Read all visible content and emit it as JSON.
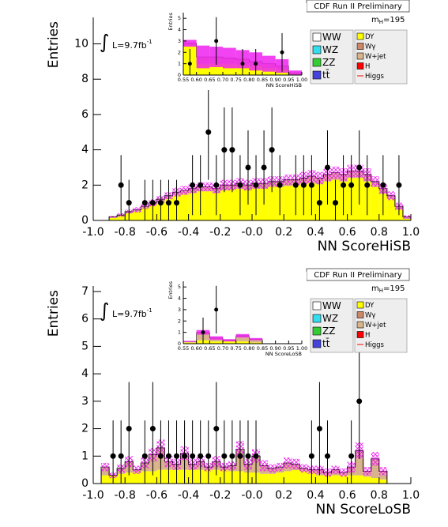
{
  "chart_data": [
    {
      "type": "stacked_histogram",
      "header": "CDF Run II Preliminary",
      "mass_label": {
        "text": "m",
        "subscript": "H",
        "suffix": "=195"
      },
      "integral_symbol": "∫",
      "lumi_label": {
        "text": "L=9.7fb",
        "superscript": "-1"
      },
      "ylabel": "Entries",
      "xlabel": "NN ScoreHiSB",
      "xlim": [
        -1.0,
        1.0
      ],
      "ylim": [
        0,
        11.5
      ],
      "xticks": [
        {
          "value": -1.0,
          "label": "-1.0"
        },
        -0.8,
        -0.6,
        -0.4,
        -0.2,
        {
          "value": 0,
          "label": "-0.0"
        },
        0.2,
        0.4,
        0.6,
        0.8,
        {
          "value": 1.0,
          "label": "1.0"
        }
      ],
      "yticks": [
        0,
        2,
        4,
        6,
        8,
        10
      ],
      "bins": [
        -1.0,
        -0.95,
        -0.9,
        -0.85,
        -0.8,
        -0.75,
        -0.7,
        -0.65,
        -0.6,
        -0.55,
        -0.5,
        -0.45,
        -0.4,
        -0.35,
        -0.3,
        -0.25,
        -0.2,
        -0.15,
        -0.1,
        -0.05,
        0,
        0.05,
        0.1,
        0.15,
        0.2,
        0.25,
        0.3,
        0.35,
        0.4,
        0.45,
        0.5,
        0.55,
        0.6,
        0.65,
        0.7,
        0.75,
        0.8,
        0.85,
        0.9,
        0.95,
        1.0
      ],
      "series": [
        {
          "name": "WW",
          "color": "#ffffff"
        },
        {
          "name": "WZ",
          "color": "#33ddee"
        },
        {
          "name": "ZZ",
          "color": "#33cc33"
        },
        {
          "name": "tt̄",
          "color": "#4444dd"
        },
        {
          "name": "DY",
          "color": "#ffff00",
          "values": [
            0,
            0,
            0.15,
            0.25,
            0.4,
            0.5,
            0.7,
            0.85,
            1.0,
            1.2,
            1.4,
            1.5,
            1.55,
            1.65,
            1.65,
            1.55,
            1.7,
            1.75,
            1.8,
            1.7,
            1.8,
            1.8,
            1.9,
            1.9,
            1.95,
            2.0,
            2.05,
            2.1,
            2.05,
            2.2,
            2.3,
            2.2,
            2.4,
            2.4,
            2.2,
            1.9,
            1.5,
            1.2,
            0.6,
            0.1
          ]
        },
        {
          "name": "Wγ",
          "color": "#cc8866"
        },
        {
          "name": "W+jet",
          "color": "#d9b38c",
          "values": [
            0,
            0,
            0.05,
            0.05,
            0.1,
            0.1,
            0.1,
            0.15,
            0.2,
            0.2,
            0.2,
            0.2,
            0.25,
            0.25,
            0.25,
            0.25,
            0.3,
            0.25,
            0.3,
            0.3,
            0.3,
            0.3,
            0.3,
            0.3,
            0.35,
            0.3,
            0.35,
            0.4,
            0.35,
            0.4,
            0.4,
            0.4,
            0.4,
            0.4,
            0.4,
            0.3,
            0.3,
            0.2,
            0.2,
            0.1
          ]
        },
        {
          "name": "H",
          "color": "#ff0000"
        },
        {
          "name": "Higgs",
          "color": "#ff0000",
          "style": "line"
        }
      ],
      "band_errors": [
        0,
        0,
        0.05,
        0.1,
        0.1,
        0.15,
        0.15,
        0.2,
        0.2,
        0.2,
        0.25,
        0.25,
        0.25,
        0.25,
        0.25,
        0.25,
        0.3,
        0.3,
        0.3,
        0.3,
        0.3,
        0.3,
        0.3,
        0.3,
        0.3,
        0.3,
        0.35,
        0.35,
        0.35,
        0.35,
        0.35,
        0.35,
        0.35,
        0.35,
        0.35,
        0.3,
        0.3,
        0.25,
        0.2,
        0.1
      ],
      "band_color": "#ee22ee",
      "data": {
        "x": [
          -0.825,
          -0.775,
          -0.675,
          -0.625,
          -0.575,
          -0.525,
          -0.475,
          -0.375,
          -0.325,
          -0.275,
          -0.225,
          -0.175,
          -0.125,
          -0.075,
          -0.025,
          0.025,
          0.075,
          0.125,
          0.175,
          0.275,
          0.325,
          0.375,
          0.425,
          0.475,
          0.525,
          0.575,
          0.625,
          0.675,
          0.725,
          0.825,
          0.925
        ],
        "values": [
          2,
          1,
          1,
          1,
          1,
          1,
          1,
          2,
          2,
          5,
          2,
          4,
          4,
          2,
          3,
          2,
          3,
          4,
          2,
          2,
          2,
          2,
          1,
          3,
          1,
          2,
          2,
          3,
          2,
          2,
          2
        ],
        "errors": [
          1.7,
          1.3,
          1.3,
          1.3,
          1.3,
          1.3,
          1.3,
          1.7,
          1.7,
          2.7,
          1.7,
          2.4,
          2.4,
          1.7,
          2.1,
          1.7,
          2.1,
          2.4,
          1.7,
          1.7,
          1.7,
          1.7,
          1.3,
          2.1,
          1.3,
          1.7,
          1.7,
          2.1,
          1.7,
          1.7,
          1.7
        ]
      },
      "inset": {
        "type": "stacked_histogram",
        "ylabel": "Entries",
        "xlabel": "NN ScoreHiSB",
        "xlim": [
          0.55,
          1.0
        ],
        "ylim": [
          0,
          5.5
        ],
        "xticks": [
          0.55,
          {
            "value": 0.6,
            "label": "0.60"
          },
          0.65,
          {
            "value": 0.7,
            "label": "0.70"
          },
          0.75,
          {
            "value": 0.8,
            "label": "0.80"
          },
          0.85,
          {
            "value": 0.9,
            "label": "0.90"
          },
          0.95,
          {
            "value": 1.0,
            "label": "1.00"
          }
        ],
        "yticks": [
          0,
          1,
          2,
          3,
          4,
          5
        ],
        "bins": [
          0.55,
          0.6,
          0.65,
          0.7,
          0.75,
          0.8,
          0.85,
          0.9,
          0.95,
          1.0
        ],
        "series": [
          {
            "color": "#ffff00",
            "values": [
              2.6,
              1.0,
              1.0,
              1.0,
              0.9,
              0.8,
              0.6,
              0.5,
              0.1
            ]
          },
          {
            "color": "#d9b38c",
            "values": [
              0.2,
              0.6,
              0.6,
              0.5,
              0.5,
              0.4,
              0.4,
              0.3,
              0.1
            ]
          }
        ],
        "band_errors": [
          0.3,
          1.0,
          0.9,
          0.9,
          0.8,
          0.8,
          0.7,
          0.6,
          0.2
        ],
        "band_color": "#ee22ee",
        "data": {
          "x": [
            0.575,
            0.675,
            0.775,
            0.825,
            0.925
          ],
          "values": [
            1,
            3,
            1,
            1,
            2
          ],
          "errors": [
            1.3,
            2.1,
            1.3,
            1.3,
            1.7
          ]
        }
      }
    },
    {
      "type": "stacked_histogram",
      "header": "CDF Run II Preliminary",
      "mass_label": {
        "text": "m",
        "subscript": "H",
        "suffix": "=195"
      },
      "integral_symbol": "∫",
      "lumi_label": {
        "text": "L=9.7fb",
        "superscript": "-1"
      },
      "ylabel": "Entries",
      "xlabel": "NN ScoreLoSB",
      "xlim": [
        -1.0,
        1.0
      ],
      "ylim": [
        0,
        7.2
      ],
      "xticks": [
        {
          "value": -1.0,
          "label": "-1.0"
        },
        -0.8,
        -0.6,
        -0.4,
        -0.2,
        {
          "value": 0,
          "label": "-0.0"
        },
        0.2,
        0.4,
        0.6,
        0.8,
        {
          "value": 1.0,
          "label": "1.0"
        }
      ],
      "yticks": [
        0,
        1,
        2,
        3,
        4,
        5,
        6,
        7
      ],
      "bins": [
        -1.0,
        -0.95,
        -0.9,
        -0.85,
        -0.8,
        -0.75,
        -0.7,
        -0.65,
        -0.6,
        -0.55,
        -0.5,
        -0.45,
        -0.4,
        -0.35,
        -0.3,
        -0.25,
        -0.2,
        -0.15,
        -0.1,
        -0.05,
        0,
        0.05,
        0.1,
        0.15,
        0.2,
        0.25,
        0.3,
        0.35,
        0.4,
        0.45,
        0.5,
        0.55,
        0.6,
        0.65,
        0.7,
        0.75,
        0.8,
        0.85,
        0.9,
        0.95,
        1.0
      ],
      "series": [
        {
          "name": "WW",
          "color": "#ffffff"
        },
        {
          "name": "WZ",
          "color": "#33ddee"
        },
        {
          "name": "ZZ",
          "color": "#33cc33"
        },
        {
          "name": "tt̄",
          "color": "#4444dd"
        },
        {
          "name": "DY",
          "color": "#ffff00",
          "values": [
            0,
            0.3,
            0.3,
            0.35,
            0.4,
            0.4,
            0.45,
            0.45,
            0.5,
            0.5,
            0.5,
            0.5,
            0.5,
            0.5,
            0.5,
            0.5,
            0.5,
            0.45,
            0.45,
            0.4,
            0.4,
            0.35,
            0.35,
            0.4,
            0.45,
            0.5,
            0.45,
            0.4,
            0.3,
            0.3,
            0.3,
            0.3,
            0.3,
            0.3,
            0.25,
            0.2,
            0.15,
            0,
            0,
            0
          ]
        },
        {
          "name": "Wγ",
          "color": "#cc8866"
        },
        {
          "name": "W+jet",
          "color": "#d9b38c",
          "values": [
            0,
            0.3,
            0,
            0.2,
            0.4,
            0.1,
            0.3,
            0.6,
            0.8,
            0.3,
            0.2,
            0.6,
            0.2,
            0.3,
            0.1,
            0.3,
            0.1,
            0.2,
            0.8,
            0.3,
            0.6,
            0.3,
            0.2,
            0.2,
            0.3,
            0.2,
            0.1,
            0.1,
            0.2,
            0.1,
            0.2,
            0.1,
            0.3,
            0.9,
            0.2,
            0.7,
            0.3,
            0,
            0,
            0
          ]
        },
        {
          "name": "H",
          "color": "#ff0000"
        },
        {
          "name": "Higgs",
          "color": "#ff0000",
          "style": "line"
        }
      ],
      "band_errors": [
        0,
        0.15,
        0.1,
        0.15,
        0.2,
        0.15,
        0.2,
        0.25,
        0.3,
        0.2,
        0.2,
        0.25,
        0.2,
        0.2,
        0.15,
        0.2,
        0.15,
        0.15,
        0.3,
        0.2,
        0.25,
        0.2,
        0.15,
        0.15,
        0.2,
        0.2,
        0.15,
        0.15,
        0.15,
        0.15,
        0.15,
        0.15,
        0.2,
        0.3,
        0.15,
        0.25,
        0.15,
        0,
        0,
        0
      ],
      "band_color": "#ee22ee",
      "data": {
        "x": [
          -0.875,
          -0.825,
          -0.775,
          -0.675,
          -0.625,
          -0.575,
          -0.525,
          -0.475,
          -0.425,
          -0.375,
          -0.325,
          -0.275,
          -0.225,
          -0.175,
          -0.125,
          -0.075,
          -0.025,
          0.025,
          0.375,
          0.425,
          0.475,
          0.625,
          0.675
        ],
        "values": [
          1,
          1,
          2,
          1,
          2,
          1,
          1,
          1,
          1,
          1,
          1,
          1,
          2,
          1,
          1,
          1,
          1,
          1,
          1,
          2,
          1,
          1,
          3
        ],
        "errors": [
          1.3,
          1.3,
          1.7,
          1.3,
          1.7,
          1.3,
          1.3,
          1.3,
          1.3,
          1.3,
          1.3,
          1.3,
          1.7,
          1.3,
          1.3,
          1.3,
          1.3,
          1.3,
          1.3,
          1.7,
          1.3,
          1.3,
          2.1
        ]
      },
      "inset": {
        "type": "stacked_histogram",
        "ylabel": "Entries",
        "xlabel": "NN ScoreLoSB",
        "xlim": [
          0.55,
          1.0
        ],
        "ylim": [
          0,
          5.5
        ],
        "xticks": [
          0.55,
          {
            "value": 0.6,
            "label": "0.60"
          },
          0.65,
          {
            "value": 0.7,
            "label": "0.70"
          },
          0.75,
          {
            "value": 0.8,
            "label": "0.80"
          },
          0.85,
          {
            "value": 0.9,
            "label": "0.90"
          },
          0.95,
          {
            "value": 1.0,
            "label": "1.00"
          }
        ],
        "yticks": [
          0,
          1,
          2,
          3,
          4,
          5
        ],
        "bins": [
          0.55,
          0.6,
          0.65,
          0.7,
          0.75,
          0.8,
          0.85,
          0.9,
          0.95,
          1.0
        ],
        "series": [
          {
            "color": "#ffff00",
            "values": [
              0.1,
              0.3,
              0.2,
              0.2,
              0.2,
              0.1,
              0,
              0,
              0
            ]
          },
          {
            "color": "#d9b38c",
            "values": [
              0.1,
              0.7,
              0.3,
              0.1,
              0.5,
              0.3,
              0,
              0,
              0
            ]
          }
        ],
        "band_errors": [
          0.05,
          0.2,
          0.15,
          0.1,
          0.15,
          0.1,
          0,
          0,
          0
        ],
        "band_color": "#ee22ee",
        "data": {
          "x": [
            0.625,
            0.675
          ],
          "values": [
            1,
            3
          ],
          "errors": [
            1.3,
            2.1
          ]
        }
      }
    }
  ]
}
